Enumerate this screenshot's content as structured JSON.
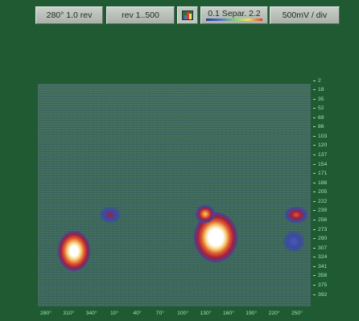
{
  "toolbar": {
    "phase_label": "280°  1.0 rev",
    "rev_label": "rev 1..500",
    "palette_icon": "palette-icon",
    "separation_label": "0.1 Separ. 2.2",
    "scale_label": "500mV / div"
  },
  "plot": {
    "y_ticks": [
      "2",
      "18",
      "35",
      "52",
      "69",
      "86",
      "103",
      "120",
      "137",
      "154",
      "171",
      "188",
      "205",
      "222",
      "239",
      "256",
      "273",
      "290",
      "307",
      "324",
      "341",
      "358",
      "375",
      "392"
    ],
    "x_ticks": [
      "280°",
      "310°",
      "340°",
      "10°",
      "40°",
      "70°",
      "100°",
      "130°",
      "160°",
      "190°",
      "220°",
      "250°"
    ],
    "background_color": "#41705d",
    "palette": [
      "#2a3c8f",
      "#b0203a",
      "#f08a30",
      "#fff3b0",
      "#ffffff"
    ]
  }
}
